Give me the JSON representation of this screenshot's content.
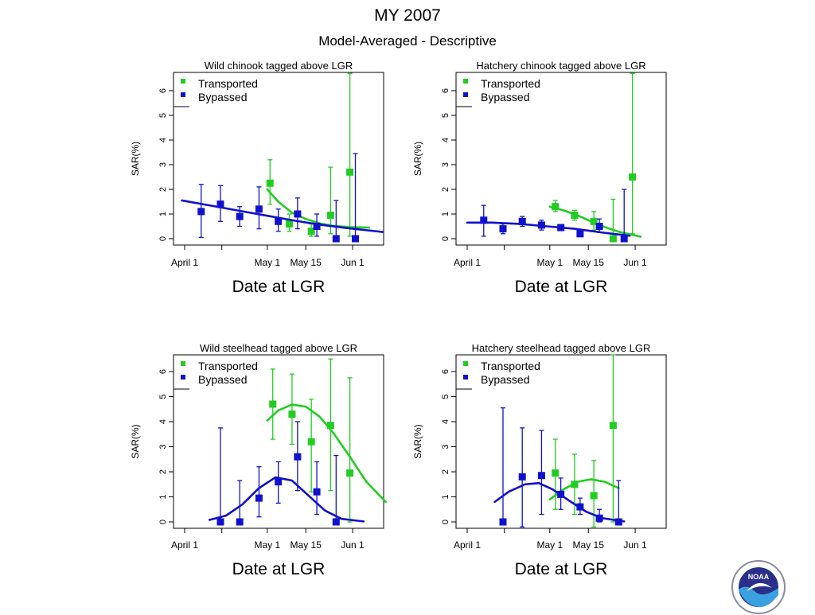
{
  "header": {
    "title": "MY 2007",
    "subtitle": "Model-Averaged - Descriptive"
  },
  "colors": {
    "transported": "#22cc22",
    "bypassed": "#1111cc",
    "frame": "#000000"
  },
  "logo": {
    "icon": "noaa-seal-icon",
    "text": "NOAA"
  },
  "chart_data": [
    {
      "type": "scatter",
      "title": "Wild chinook tagged above LGR",
      "xlabel": "Date at LGR",
      "ylabel": "SAR(%)",
      "ylim": [
        -0.3,
        6.7
      ],
      "y_ticks": [
        "0",
        "1",
        "2",
        "3",
        "4",
        "5",
        "6"
      ],
      "x_ticks": [
        "April 1",
        "May 1",
        "May 15",
        "Jun 1"
      ],
      "legend": {
        "position": "top-left",
        "entries": [
          "Transported",
          "Bypassed"
        ]
      },
      "series": [
        {
          "name": "Transported",
          "points": [
            {
              "x": "2007-05-02",
              "y": 2.25,
              "lo": 1.4,
              "hi": 3.2
            },
            {
              "x": "2007-05-09",
              "y": 0.6,
              "lo": 0.3,
              "hi": 1.0
            },
            {
              "x": "2007-05-17",
              "y": 0.3,
              "lo": 0.1,
              "hi": 0.6
            },
            {
              "x": "2007-05-24",
              "y": 0.95,
              "lo": 0.2,
              "hi": 2.9
            },
            {
              "x": "2007-05-31",
              "y": 2.7,
              "lo": 0.1,
              "hi": 6.7
            }
          ],
          "fit": [
            [
              "2007-05-01",
              2.0
            ],
            [
              "2007-05-05",
              1.5
            ],
            [
              "2007-05-10",
              1.05
            ],
            [
              "2007-05-15",
              0.8
            ],
            [
              "2007-05-20",
              0.62
            ],
            [
              "2007-05-25",
              0.52
            ],
            [
              "2007-05-31",
              0.47
            ],
            [
              "2007-06-07",
              0.45
            ]
          ]
        },
        {
          "name": "Bypassed",
          "points": [
            {
              "x": "2007-04-07",
              "y": 1.1,
              "lo": 0.05,
              "hi": 2.2
            },
            {
              "x": "2007-04-14",
              "y": 1.4,
              "lo": 0.7,
              "hi": 2.15
            },
            {
              "x": "2007-04-21",
              "y": 0.9,
              "lo": 0.5,
              "hi": 1.3
            },
            {
              "x": "2007-04-28",
              "y": 1.2,
              "lo": 0.4,
              "hi": 2.1
            },
            {
              "x": "2007-05-05",
              "y": 0.7,
              "lo": 0.3,
              "hi": 1.2
            },
            {
              "x": "2007-05-12",
              "y": 1.0,
              "lo": 0.4,
              "hi": 1.65
            },
            {
              "x": "2007-05-19",
              "y": 0.5,
              "lo": 0.1,
              "hi": 1.0
            },
            {
              "x": "2007-05-26",
              "y": 0.0,
              "lo": 0.0,
              "hi": 1.55
            },
            {
              "x": "2007-06-02",
              "y": 0.0,
              "lo": 0.0,
              "hi": 3.45
            }
          ],
          "fit": [
            [
              "2007-03-31",
              1.55
            ],
            [
              "2007-04-10",
              1.35
            ],
            [
              "2007-04-20",
              1.15
            ],
            [
              "2007-04-30",
              0.95
            ],
            [
              "2007-05-10",
              0.75
            ],
            [
              "2007-05-20",
              0.57
            ],
            [
              "2007-05-30",
              0.43
            ],
            [
              "2007-06-12",
              0.27
            ]
          ]
        }
      ]
    },
    {
      "type": "scatter",
      "title": "Hatchery chinook tagged above LGR",
      "xlabel": "Date at LGR",
      "ylabel": "SAR(%)",
      "ylim": [
        -0.3,
        6.7
      ],
      "y_ticks": [
        "0",
        "1",
        "2",
        "3",
        "4",
        "5",
        "6"
      ],
      "x_ticks": [
        "April 1",
        "May 1",
        "May 15",
        "Jun 1"
      ],
      "legend": {
        "position": "top-left",
        "entries": [
          "Transported",
          "Bypassed"
        ]
      },
      "series": [
        {
          "name": "Transported",
          "points": [
            {
              "x": "2007-05-03",
              "y": 1.3,
              "lo": 1.1,
              "hi": 1.55
            },
            {
              "x": "2007-05-10",
              "y": 0.95,
              "lo": 0.75,
              "hi": 1.15
            },
            {
              "x": "2007-05-17",
              "y": 0.7,
              "lo": 0.35,
              "hi": 1.1
            },
            {
              "x": "2007-05-24",
              "y": 0.0,
              "lo": 0.0,
              "hi": 1.6
            },
            {
              "x": "2007-05-31",
              "y": 2.5,
              "lo": 0.2,
              "hi": 6.7
            }
          ],
          "fit": [
            [
              "2007-05-01",
              1.3
            ],
            [
              "2007-05-06",
              1.15
            ],
            [
              "2007-05-11",
              0.95
            ],
            [
              "2007-05-16",
              0.7
            ],
            [
              "2007-05-21",
              0.47
            ],
            [
              "2007-05-26",
              0.28
            ],
            [
              "2007-06-03",
              0.08
            ]
          ]
        },
        {
          "name": "Bypassed",
          "points": [
            {
              "x": "2007-04-07",
              "y": 0.75,
              "lo": 0.1,
              "hi": 1.35
            },
            {
              "x": "2007-04-14",
              "y": 0.4,
              "lo": 0.2,
              "hi": 0.6
            },
            {
              "x": "2007-04-21",
              "y": 0.7,
              "lo": 0.5,
              "hi": 0.9
            },
            {
              "x": "2007-04-28",
              "y": 0.55,
              "lo": 0.35,
              "hi": 0.75
            },
            {
              "x": "2007-05-05",
              "y": 0.45,
              "lo": 0.35,
              "hi": 0.55
            },
            {
              "x": "2007-05-12",
              "y": 0.2,
              "lo": 0.1,
              "hi": 0.3
            },
            {
              "x": "2007-05-19",
              "y": 0.5,
              "lo": 0.25,
              "hi": 0.8
            },
            {
              "x": "2007-05-28",
              "y": 0.0,
              "lo": 0.0,
              "hi": 2.0
            }
          ],
          "fit": [
            [
              "2007-04-01",
              0.65
            ],
            [
              "2007-04-10",
              0.65
            ],
            [
              "2007-04-20",
              0.6
            ],
            [
              "2007-04-30",
              0.5
            ],
            [
              "2007-05-10",
              0.4
            ],
            [
              "2007-05-20",
              0.25
            ],
            [
              "2007-05-30",
              0.12
            ]
          ]
        }
      ]
    },
    {
      "type": "scatter",
      "title": "Wild steelhead tagged above LGR",
      "xlabel": "Date at LGR",
      "ylabel": "SAR(%)",
      "ylim": [
        -0.25,
        6.9
      ],
      "y_ticks": [
        "0",
        "1",
        "2",
        "3",
        "4",
        "5",
        "6"
      ],
      "x_ticks": [
        "April 1",
        "May 1",
        "May 15",
        "Jun 1"
      ],
      "legend": {
        "position": "top-left",
        "entries": [
          "Transported",
          "Bypassed"
        ]
      },
      "series": [
        {
          "name": "Transported",
          "points": [
            {
              "x": "2007-05-03",
              "y": 4.7,
              "lo": 3.3,
              "hi": 6.1
            },
            {
              "x": "2007-05-10",
              "y": 4.3,
              "lo": 3.1,
              "hi": 5.9
            },
            {
              "x": "2007-05-17",
              "y": 3.2,
              "lo": 1.2,
              "hi": 4.9
            },
            {
              "x": "2007-05-24",
              "y": 3.85,
              "lo": 1.25,
              "hi": 6.5
            },
            {
              "x": "2007-05-31",
              "y": 1.95,
              "lo": 0.0,
              "hi": 5.75
            }
          ],
          "fit": [
            [
              "2007-05-01",
              4.05
            ],
            [
              "2007-05-05",
              4.45
            ],
            [
              "2007-05-10",
              4.68
            ],
            [
              "2007-05-15",
              4.6
            ],
            [
              "2007-05-20",
              4.2
            ],
            [
              "2007-05-25",
              3.55
            ],
            [
              "2007-05-31",
              2.6
            ],
            [
              "2007-06-06",
              1.6
            ],
            [
              "2007-06-13",
              0.8
            ]
          ]
        },
        {
          "name": "Bypassed",
          "points": [
            {
              "x": "2007-04-14",
              "y": 0.0,
              "lo": 0.0,
              "hi": 3.75
            },
            {
              "x": "2007-04-21",
              "y": 0.0,
              "lo": 0.0,
              "hi": 1.65
            },
            {
              "x": "2007-04-28",
              "y": 0.95,
              "lo": 0.2,
              "hi": 2.2
            },
            {
              "x": "2007-05-05",
              "y": 1.6,
              "lo": 0.75,
              "hi": 2.4
            },
            {
              "x": "2007-05-12",
              "y": 2.6,
              "lo": 1.25,
              "hi": 4.0
            },
            {
              "x": "2007-05-19",
              "y": 1.2,
              "lo": 0.3,
              "hi": 2.4
            },
            {
              "x": "2007-05-26",
              "y": 0.0,
              "lo": 0.0,
              "hi": 2.65
            }
          ],
          "fit": [
            [
              "2007-04-10",
              0.08
            ],
            [
              "2007-04-16",
              0.25
            ],
            [
              "2007-04-22",
              0.7
            ],
            [
              "2007-04-28",
              1.35
            ],
            [
              "2007-05-04",
              1.78
            ],
            [
              "2007-05-10",
              1.65
            ],
            [
              "2007-05-16",
              1.05
            ],
            [
              "2007-05-22",
              0.45
            ],
            [
              "2007-05-28",
              0.12
            ],
            [
              "2007-06-05",
              0.02
            ]
          ]
        }
      ]
    },
    {
      "type": "scatter",
      "title": "Hatchery steelhead tagged above LGR",
      "xlabel": "Date at LGR",
      "ylabel": "SAR(%)",
      "ylim": [
        -0.25,
        6.9
      ],
      "y_ticks": [
        "0",
        "1",
        "2",
        "3",
        "4",
        "5",
        "6"
      ],
      "x_ticks": [
        "April 1",
        "May 1",
        "May 15",
        "Jun 1"
      ],
      "legend": {
        "position": "top-left",
        "entries": [
          "Transported",
          "Bypassed"
        ]
      },
      "series": [
        {
          "name": "Transported",
          "points": [
            {
              "x": "2007-05-03",
              "y": 1.95,
              "lo": 0.5,
              "hi": 3.3
            },
            {
              "x": "2007-05-10",
              "y": 1.5,
              "lo": 0.3,
              "hi": 2.7
            },
            {
              "x": "2007-05-17",
              "y": 1.05,
              "lo": -0.2,
              "hi": 2.45
            },
            {
              "x": "2007-05-24",
              "y": 3.85,
              "lo": 0.0,
              "hi": 6.9
            }
          ],
          "fit": [
            [
              "2007-05-01",
              0.9
            ],
            [
              "2007-05-06",
              1.3
            ],
            [
              "2007-05-11",
              1.6
            ],
            [
              "2007-05-16",
              1.7
            ],
            [
              "2007-05-21",
              1.6
            ],
            [
              "2007-05-26",
              1.35
            ]
          ]
        },
        {
          "name": "Bypassed",
          "points": [
            {
              "x": "2007-04-14",
              "y": 0.0,
              "lo": 0.0,
              "hi": 4.55
            },
            {
              "x": "2007-04-21",
              "y": 1.8,
              "lo": -0.2,
              "hi": 3.75
            },
            {
              "x": "2007-04-28",
              "y": 1.85,
              "lo": 0.3,
              "hi": 3.65
            },
            {
              "x": "2007-05-05",
              "y": 1.1,
              "lo": 0.5,
              "hi": 1.75
            },
            {
              "x": "2007-05-12",
              "y": 0.6,
              "lo": 0.3,
              "hi": 0.95
            },
            {
              "x": "2007-05-19",
              "y": 0.15,
              "lo": 0.0,
              "hi": 0.5
            },
            {
              "x": "2007-05-26",
              "y": 0.0,
              "lo": 0.0,
              "hi": 1.65
            }
          ],
          "fit": [
            [
              "2007-04-11",
              0.8
            ],
            [
              "2007-04-16",
              1.2
            ],
            [
              "2007-04-22",
              1.5
            ],
            [
              "2007-04-27",
              1.55
            ],
            [
              "2007-05-02",
              1.3
            ],
            [
              "2007-05-08",
              0.85
            ],
            [
              "2007-05-14",
              0.42
            ],
            [
              "2007-05-20",
              0.15
            ],
            [
              "2007-05-28",
              0.02
            ]
          ]
        }
      ]
    }
  ]
}
